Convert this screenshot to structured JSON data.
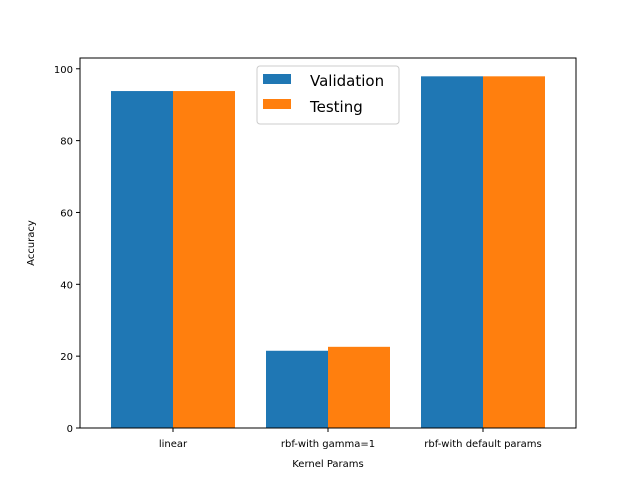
{
  "chart_data": {
    "type": "bar",
    "categories": [
      "linear",
      "rbf-with gamma=1",
      "rbf-with default params"
    ],
    "series": [
      {
        "name": "Validation",
        "values": [
          93.8,
          21.5,
          97.9
        ],
        "color": "#1f77b4"
      },
      {
        "name": "Testing",
        "values": [
          93.8,
          22.6,
          97.9
        ],
        "color": "#ff7f0e"
      }
    ],
    "xlabel": "Kernel Params",
    "ylabel": "Accuracy",
    "ylim": [
      0,
      103
    ],
    "yticks": [
      "0",
      "20",
      "40",
      "60",
      "80",
      "100"
    ],
    "grid": false,
    "legend_position": "top-center"
  }
}
